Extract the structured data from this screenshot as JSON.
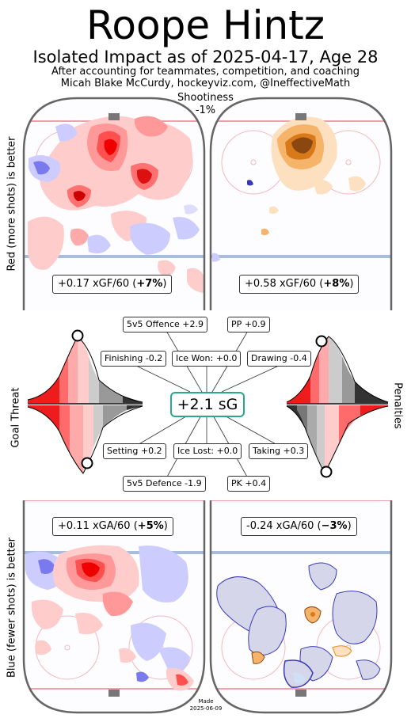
{
  "header": {
    "title": "Roope Hintz",
    "subtitle": "Isolated Impact as of 2025-04-17, Age 28",
    "line1": "After accounting for teammates, competition, and coaching",
    "line2": "Micah Blake McCurdy, hockeyviz.com, @IneffectiveMath",
    "shootiness_label": "Shootiness",
    "shootiness_value": "-1%"
  },
  "side_labels": {
    "top_left": "Red (more shots) is better",
    "bottom_left": "Blue (fewer shots) is better",
    "goal_threat": "Goal Threat",
    "penalties": "Penalties"
  },
  "chart_data": {
    "type": "table",
    "offence": {
      "five_on_five": {
        "xgf60": "+0.17",
        "pct": "+7%"
      },
      "power_play": {
        "xgf60": "+0.58",
        "pct": "+8%"
      }
    },
    "defence": {
      "five_on_five": {
        "xga60": "+0.11",
        "pct": "+5%"
      },
      "penalty_kill": {
        "xga60": "-0.24",
        "pct": "−3%"
      }
    },
    "total_sg": "+2.1 sG",
    "components": [
      {
        "label": "5v5 Offence",
        "value": "+2.9"
      },
      {
        "label": "PP",
        "value": "+0.9"
      },
      {
        "label": "Finishing",
        "value": "-0.2"
      },
      {
        "label": "Ice Won:",
        "value": "+0.0"
      },
      {
        "label": "Drawing",
        "value": "-0.4"
      },
      {
        "label": "Setting",
        "value": "+0.2"
      },
      {
        "label": "Ice Lost:",
        "value": "+0.0"
      },
      {
        "label": "Taking",
        "value": "+0.3"
      },
      {
        "label": "5v5 Defence",
        "value": "-1.9"
      },
      {
        "label": "PK",
        "value": "+0.4"
      }
    ],
    "percentiles": {
      "goal_threat_top": 0.58,
      "goal_threat_bottom": 0.52,
      "penalties_top": 0.42,
      "penalties_bottom": 0.45
    }
  },
  "labels": {
    "xgf": "xGF/60",
    "xga": "xGA/60",
    "made": "Made",
    "made_date": "2025-06-09"
  },
  "colors": {
    "red": "#ff0000",
    "blue": "#3a3ab8",
    "orange": "#e8891c",
    "teal": "#2aa88a",
    "rink_line_red": "#f0a0a8",
    "rink_line_blue": "#a8bcdc"
  }
}
